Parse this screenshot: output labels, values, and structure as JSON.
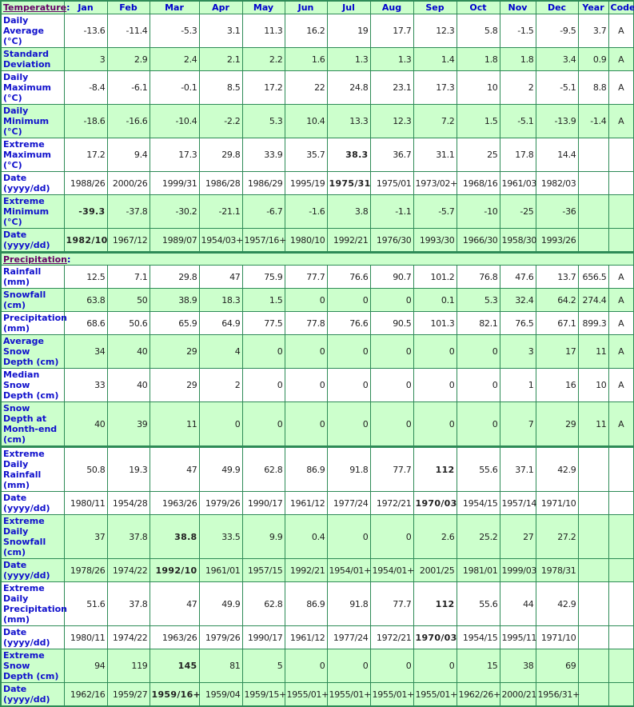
{
  "colors": {
    "green": "#ccffcc",
    "border": "#2e8b57",
    "label": "#0000cc",
    "section": "#660066"
  },
  "columns": [
    "Jan",
    "Feb",
    "Mar",
    "Apr",
    "May",
    "Jun",
    "Jul",
    "Aug",
    "Sep",
    "Oct",
    "Nov",
    "Dec",
    "Year",
    "Code"
  ],
  "sections": [
    {
      "title": "Temperature",
      "colon": ":",
      "rows": [
        {
          "label": "Daily Average (°C)",
          "values": [
            "-13.6",
            "-11.4",
            "-5.3",
            "3.1",
            "11.3",
            "16.2",
            "19",
            "17.7",
            "12.3",
            "5.8",
            "-1.5",
            "-9.5",
            "3.7",
            "A"
          ],
          "bold": [],
          "shade": "w"
        },
        {
          "label": "Standard Deviation",
          "values": [
            "3",
            "2.9",
            "2.4",
            "2.1",
            "2.2",
            "1.6",
            "1.3",
            "1.3",
            "1.4",
            "1.8",
            "1.8",
            "3.4",
            "0.9",
            "A"
          ],
          "bold": [],
          "shade": "g"
        },
        {
          "label": "Daily Maximum (°C)",
          "values": [
            "-8.4",
            "-6.1",
            "-0.1",
            "8.5",
            "17.2",
            "22",
            "24.8",
            "23.1",
            "17.3",
            "10",
            "2",
            "-5.1",
            "8.8",
            "A"
          ],
          "bold": [],
          "shade": "w"
        },
        {
          "label": "Daily Minimum (°C)",
          "values": [
            "-18.6",
            "-16.6",
            "-10.4",
            "-2.2",
            "5.3",
            "10.4",
            "13.3",
            "12.3",
            "7.2",
            "1.5",
            "-5.1",
            "-13.9",
            "-1.4",
            "A"
          ],
          "bold": [],
          "shade": "g"
        },
        {
          "label": "Extreme Maximum (°C)",
          "values": [
            "17.2",
            "9.4",
            "17.3",
            "29.8",
            "33.9",
            "35.7",
            "38.3",
            "36.7",
            "31.1",
            "25",
            "17.8",
            "14.4",
            "",
            ""
          ],
          "bold": [
            6
          ],
          "shade": "w"
        },
        {
          "label": "Date (yyyy/dd)",
          "values": [
            "1988/26",
            "2000/26",
            "1999/31",
            "1986/28",
            "1986/29",
            "1995/19",
            "1975/31",
            "1975/01",
            "1973/02+",
            "1968/16",
            "1961/03",
            "1982/03",
            "",
            ""
          ],
          "bold": [
            6
          ],
          "shade": "w"
        },
        {
          "label": "Extreme Minimum (°C)",
          "values": [
            "-39.3",
            "-37.8",
            "-30.2",
            "-21.1",
            "-6.7",
            "-1.6",
            "3.8",
            "-1.1",
            "-5.7",
            "-10",
            "-25",
            "-36",
            "",
            ""
          ],
          "bold": [
            0
          ],
          "shade": "g"
        },
        {
          "label": "Date (yyyy/dd)",
          "values": [
            "1982/10",
            "1967/12",
            "1989/07",
            "1954/03+",
            "1957/16+",
            "1980/10",
            "1992/21",
            "1976/30",
            "1993/30",
            "1966/30",
            "1958/30",
            "1993/26",
            "",
            ""
          ],
          "bold": [
            0
          ],
          "shade": "g"
        }
      ]
    },
    {
      "title": "Precipitation",
      "colon": ":",
      "rows": [
        {
          "label": "Rainfall (mm)",
          "values": [
            "12.5",
            "7.1",
            "29.8",
            "47",
            "75.9",
            "77.7",
            "76.6",
            "90.7",
            "101.2",
            "76.8",
            "47.6",
            "13.7",
            "656.5",
            "A"
          ],
          "bold": [],
          "shade": "w"
        },
        {
          "label": "Snowfall (cm)",
          "values": [
            "63.8",
            "50",
            "38.9",
            "18.3",
            "1.5",
            "0",
            "0",
            "0",
            "0.1",
            "5.3",
            "32.4",
            "64.2",
            "274.4",
            "A"
          ],
          "bold": [],
          "shade": "g"
        },
        {
          "label": "Precipitation (mm)",
          "values": [
            "68.6",
            "50.6",
            "65.9",
            "64.9",
            "77.5",
            "77.8",
            "76.6",
            "90.5",
            "101.3",
            "82.1",
            "76.5",
            "67.1",
            "899.3",
            "A"
          ],
          "bold": [],
          "shade": "w"
        },
        {
          "label": "Average Snow Depth (cm)",
          "values": [
            "34",
            "40",
            "29",
            "4",
            "0",
            "0",
            "0",
            "0",
            "0",
            "0",
            "3",
            "17",
            "11",
            "A"
          ],
          "bold": [],
          "shade": "g"
        },
        {
          "label": "Median Snow Depth (cm)",
          "values": [
            "33",
            "40",
            "29",
            "2",
            "0",
            "0",
            "0",
            "0",
            "0",
            "0",
            "1",
            "16",
            "10",
            "A"
          ],
          "bold": [],
          "shade": "w"
        },
        {
          "label": "Snow Depth at Month-end (cm)",
          "values": [
            "40",
            "39",
            "11",
            "0",
            "0",
            "0",
            "0",
            "0",
            "0",
            "0",
            "7",
            "29",
            "11",
            "A"
          ],
          "bold": [],
          "shade": "g"
        },
        {
          "label": "Extreme Daily Rainfall (mm)",
          "values": [
            "50.8",
            "19.3",
            "47",
            "49.9",
            "62.8",
            "86.9",
            "91.8",
            "77.7",
            "112",
            "55.6",
            "37.1",
            "42.9",
            "",
            ""
          ],
          "bold": [
            8
          ],
          "shade": "w",
          "thick": true
        },
        {
          "label": "Date (yyyy/dd)",
          "values": [
            "1980/11",
            "1954/28",
            "1963/26",
            "1979/26",
            "1990/17",
            "1961/12",
            "1977/24",
            "1972/21",
            "1970/03",
            "1954/15",
            "1957/14",
            "1971/10",
            "",
            ""
          ],
          "bold": [
            8
          ],
          "shade": "w"
        },
        {
          "label": "Extreme Daily Snowfall (cm)",
          "values": [
            "37",
            "37.8",
            "38.8",
            "33.5",
            "9.9",
            "0.4",
            "0",
            "0",
            "2.6",
            "25.2",
            "27",
            "27.2",
            "",
            ""
          ],
          "bold": [
            2
          ],
          "shade": "g"
        },
        {
          "label": "Date (yyyy/dd)",
          "values": [
            "1978/26",
            "1974/22",
            "1992/10",
            "1961/01",
            "1957/15",
            "1992/21",
            "1954/01+",
            "1954/01+",
            "2001/25",
            "1981/01",
            "1999/03",
            "1978/31",
            "",
            ""
          ],
          "bold": [
            2
          ],
          "shade": "g"
        },
        {
          "label": "Extreme Daily Precipitation (mm)",
          "values": [
            "51.6",
            "37.8",
            "47",
            "49.9",
            "62.8",
            "86.9",
            "91.8",
            "77.7",
            "112",
            "55.6",
            "44",
            "42.9",
            "",
            ""
          ],
          "bold": [
            8
          ],
          "shade": "w"
        },
        {
          "label": "Date (yyyy/dd)",
          "values": [
            "1980/11",
            "1974/22",
            "1963/26",
            "1979/26",
            "1990/17",
            "1961/12",
            "1977/24",
            "1972/21",
            "1970/03",
            "1954/15",
            "1995/11",
            "1971/10",
            "",
            ""
          ],
          "bold": [
            8
          ],
          "shade": "w"
        },
        {
          "label": "Extreme Snow Depth (cm)",
          "values": [
            "94",
            "119",
            "145",
            "81",
            "5",
            "0",
            "0",
            "0",
            "0",
            "15",
            "38",
            "69",
            "",
            ""
          ],
          "bold": [
            2
          ],
          "shade": "g"
        },
        {
          "label": "Date (yyyy/dd)",
          "values": [
            "1962/16",
            "1959/27",
            "1959/16+",
            "1959/04",
            "1959/15+",
            "1955/01+",
            "1955/01+",
            "1955/01+",
            "1955/01+",
            "1962/26+",
            "2000/21",
            "1956/31+",
            "",
            ""
          ],
          "bold": [
            2
          ],
          "shade": "g"
        }
      ]
    }
  ]
}
